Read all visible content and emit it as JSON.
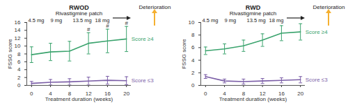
{
  "chart_data": [
    {
      "type": "line",
      "title": "RWOD",
      "subtitle": "Rivastigmine patch",
      "dose_labels": [
        "4.5 mg",
        "9 mg",
        "13.5 mg",
        "18 mg"
      ],
      "direction_label": "Deterioration",
      "x_label": "Treatment duration (weeks)",
      "y_label": "FSSG score",
      "x": [
        0,
        4,
        8,
        12,
        16,
        20
      ],
      "xlim": [
        -1,
        21
      ],
      "xticks": [
        0,
        4,
        8,
        12,
        16,
        20
      ],
      "ylim": [
        0,
        16
      ],
      "yticks": [
        0,
        2,
        4,
        6,
        8,
        10,
        12,
        14,
        16
      ],
      "grid": false,
      "legend": "right",
      "series": [
        {
          "name": "Score ≥4",
          "color": "#3aa36d",
          "values": [
            7.8,
            8.5,
            8.7,
            10.7,
            11.3,
            11.8
          ],
          "errors": [
            2.0,
            2.2,
            2.5,
            2.7,
            3.0,
            3.2
          ],
          "significance": [
            null,
            null,
            null,
            "#",
            "#",
            "#"
          ]
        },
        {
          "name": "Score ≤3",
          "color": "#7b5ea7",
          "values": [
            0.5,
            0.8,
            0.9,
            1.1,
            1.3,
            1.2
          ],
          "errors": [
            0.5,
            0.7,
            0.8,
            1.0,
            1.0,
            1.0
          ]
        }
      ]
    },
    {
      "type": "line",
      "title": "RWD",
      "subtitle": "Rivastigmine patch",
      "dose_labels": [
        "4.5 mg",
        "9 mg",
        "13.5 mg",
        "18 mg"
      ],
      "direction_label": "Deterioration",
      "x_label": "Treatment duration (weeks)",
      "y_label": "FSSG score",
      "x": [
        0,
        4,
        8,
        12,
        16,
        20
      ],
      "xlim": [
        -1,
        21
      ],
      "xticks": [
        0,
        4,
        8,
        12,
        16,
        20
      ],
      "ylim": [
        0,
        10
      ],
      "yticks": [
        0,
        2,
        4,
        6,
        8,
        10
      ],
      "grid": false,
      "legend": "right",
      "series": [
        {
          "name": "Score ≥4",
          "color": "#3aa36d",
          "values": [
            5.5,
            5.8,
            6.3,
            7.2,
            8.3,
            8.5
          ],
          "errors": [
            0.6,
            0.8,
            0.9,
            1.0,
            1.2,
            1.3
          ]
        },
        {
          "name": "Score ≤3",
          "color": "#7b5ea7",
          "values": [
            1.4,
            0.7,
            0.6,
            0.7,
            0.8,
            0.9
          ],
          "errors": [
            0.3,
            0.3,
            0.4,
            0.4,
            0.4,
            0.5
          ]
        }
      ]
    }
  ]
}
